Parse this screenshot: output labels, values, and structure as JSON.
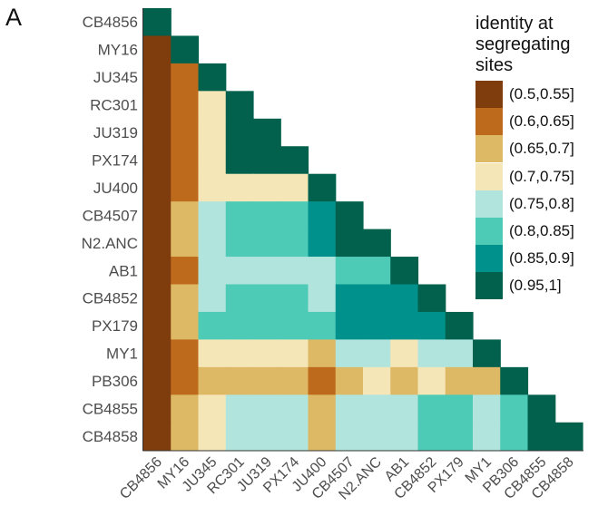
{
  "panel_label": "A",
  "colors": [
    "#7f3c0d",
    "#bd6a1c",
    "#ddb865",
    "#f5e6b8",
    "#b2e4de",
    "#4ecbb7",
    "#00918c",
    "#02614d"
  ],
  "legend": {
    "title_lines": [
      "identity at",
      "segregating",
      "sites"
    ],
    "items": [
      {
        "label": "(0.5,0.55]"
      },
      {
        "label": "(0.6,0.65]"
      },
      {
        "label": "(0.65,0.7]"
      },
      {
        "label": "(0.7,0.75]"
      },
      {
        "label": "(0.75,0.8]"
      },
      {
        "label": "(0.8,0.85]"
      },
      {
        "label": "(0.85,0.9]"
      },
      {
        "label": "(0.95,1]"
      }
    ]
  },
  "chart_data": {
    "type": "heatmap",
    "legend_position": "top-right",
    "rows": [
      "CB4856",
      "MY16",
      "JU345",
      "RC301",
      "JU319",
      "PX174",
      "JU400",
      "CB4507",
      "N2.ANC",
      "AB1",
      "CB4852",
      "PX179",
      "MY1",
      "PB306",
      "CB4855",
      "CB4858"
    ],
    "columns": [
      "CB4856",
      "MY16",
      "JU345",
      "RC301",
      "JU319",
      "PX174",
      "JU400",
      "CB4507",
      "N2.ANC",
      "AB1",
      "CB4852",
      "PX179",
      "MY1",
      "PB306",
      "CB4855",
      "CB4858"
    ],
    "values": [
      [
        7
      ],
      [
        0,
        7
      ],
      [
        0,
        1,
        7
      ],
      [
        0,
        1,
        3,
        7
      ],
      [
        0,
        1,
        3,
        7,
        7
      ],
      [
        0,
        1,
        3,
        7,
        7,
        7
      ],
      [
        0,
        1,
        3,
        3,
        3,
        3,
        7
      ],
      [
        0,
        2,
        4,
        5,
        5,
        5,
        6,
        7
      ],
      [
        0,
        2,
        4,
        5,
        5,
        5,
        6,
        7,
        7
      ],
      [
        0,
        1,
        4,
        4,
        4,
        4,
        4,
        5,
        5,
        7
      ],
      [
        0,
        2,
        4,
        5,
        5,
        5,
        4,
        6,
        6,
        6,
        7
      ],
      [
        0,
        2,
        5,
        5,
        5,
        5,
        5,
        6,
        6,
        6,
        6,
        7
      ],
      [
        0,
        1,
        3,
        3,
        3,
        3,
        2,
        4,
        4,
        3,
        4,
        4,
        7
      ],
      [
        0,
        1,
        2,
        2,
        2,
        2,
        1,
        2,
        3,
        2,
        3,
        2,
        2,
        7
      ],
      [
        0,
        2,
        3,
        4,
        4,
        4,
        2,
        4,
        4,
        4,
        5,
        5,
        4,
        5,
        7
      ],
      [
        0,
        2,
        3,
        4,
        4,
        4,
        2,
        4,
        4,
        4,
        5,
        5,
        4,
        5,
        7,
        7
      ]
    ]
  }
}
